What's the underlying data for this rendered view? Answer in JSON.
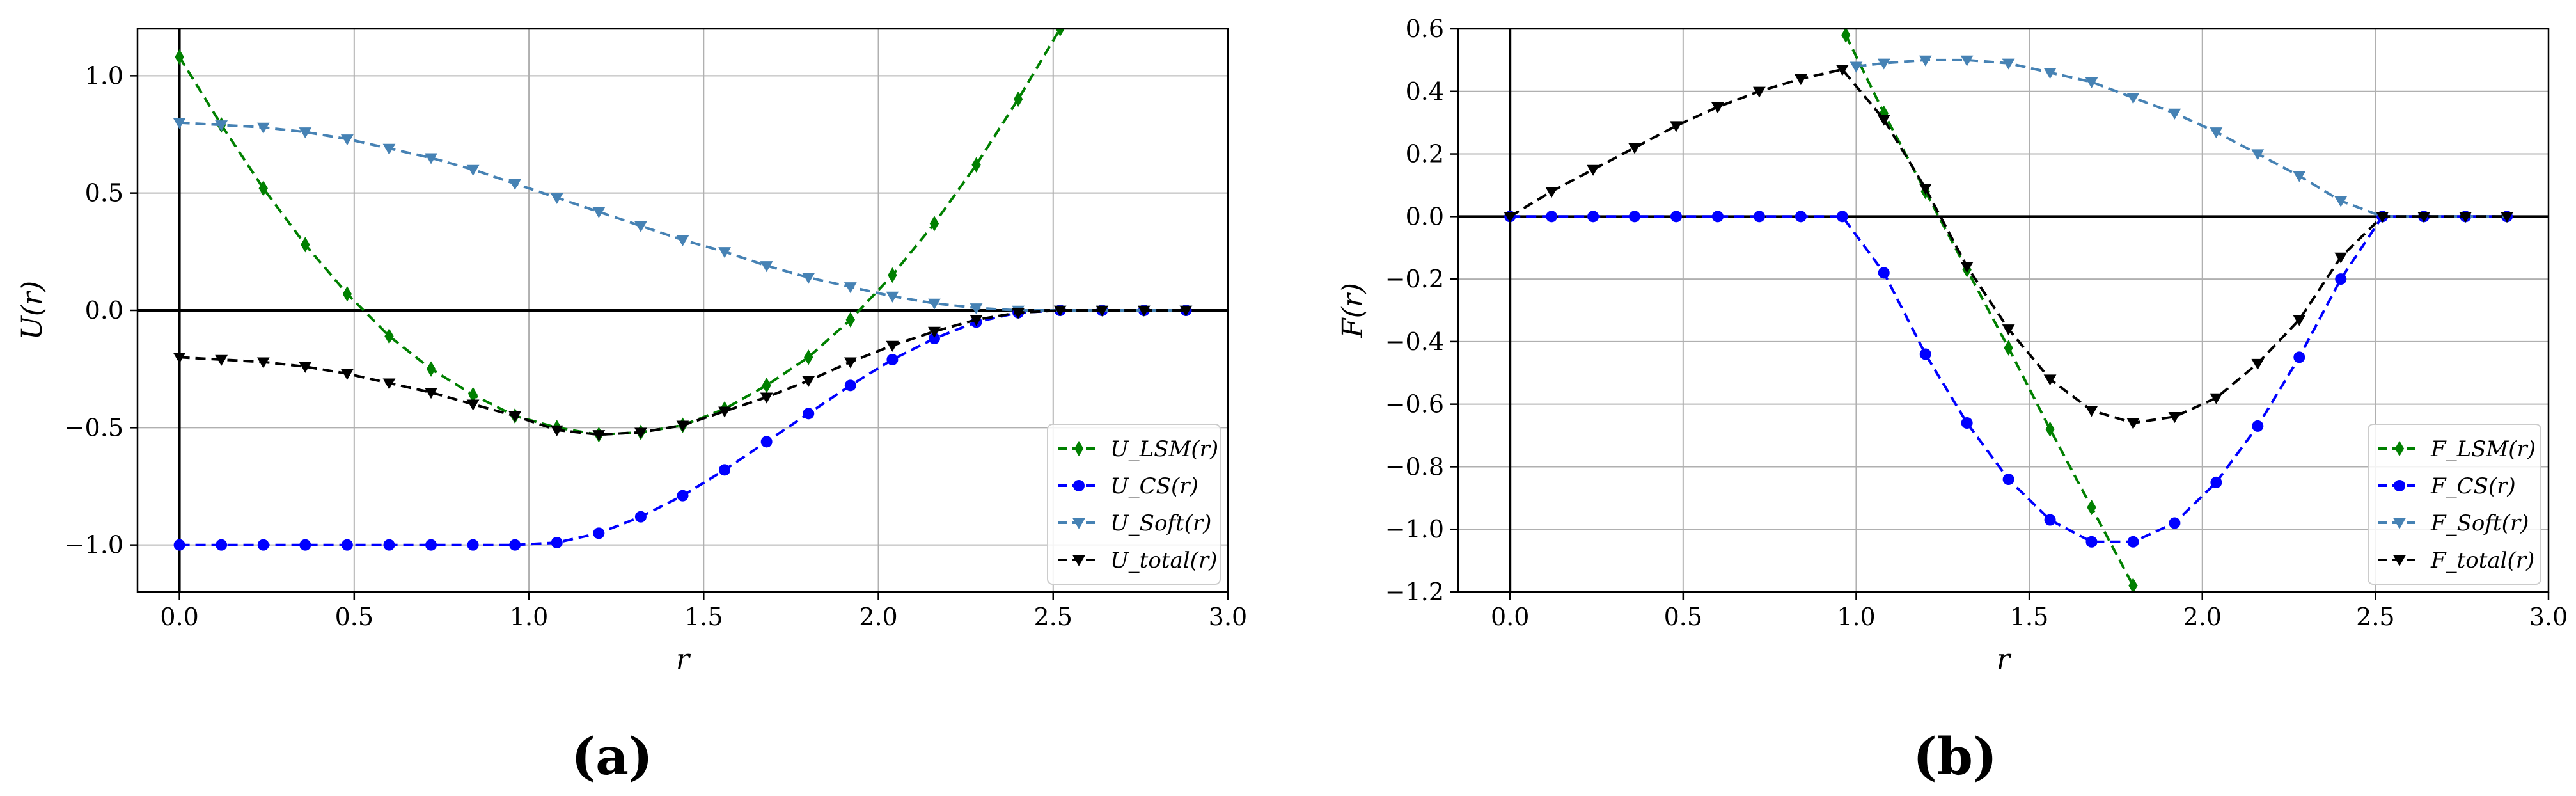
{
  "panels": [
    {
      "label": "(a)"
    },
    {
      "label": "(b)"
    }
  ],
  "chart_data": [
    {
      "type": "line",
      "panel": "(a)",
      "xlabel": "r",
      "ylabel": "U(r)",
      "xlim": [
        -0.12,
        3.0
      ],
      "ylim": [
        -1.2,
        1.2
      ],
      "xticks": [
        0.0,
        0.5,
        1.0,
        1.5,
        2.0,
        2.5,
        3.0
      ],
      "xtick_labels": [
        "0.0",
        "0.5",
        "1.0",
        "1.5",
        "2.0",
        "2.5",
        "3.0"
      ],
      "yticks": [
        -1.0,
        -0.5,
        0.0,
        0.5,
        1.0
      ],
      "ytick_labels": [
        "−1.0",
        "−0.5",
        "0.0",
        "0.5",
        "1.0"
      ],
      "grid": true,
      "legend_position": "bottom-right",
      "zero_lines": true,
      "series": [
        {
          "name": "U_LSM(r)",
          "base": "U",
          "sub": "LSM",
          "color": "#008000",
          "marker": "diamond",
          "x": [
            0.0,
            0.12,
            0.24,
            0.36,
            0.48,
            0.6,
            0.72,
            0.84,
            0.96,
            1.08,
            1.2,
            1.32,
            1.44,
            1.56,
            1.68,
            1.8,
            1.92,
            2.04,
            2.16,
            2.28,
            2.4,
            2.52
          ],
          "y": [
            1.08,
            0.79,
            0.52,
            0.28,
            0.07,
            -0.11,
            -0.25,
            -0.36,
            -0.45,
            -0.5,
            -0.53,
            -0.52,
            -0.49,
            -0.42,
            -0.32,
            -0.2,
            -0.04,
            0.15,
            0.37,
            0.62,
            0.9,
            1.2
          ]
        },
        {
          "name": "U_CS(r)",
          "base": "U",
          "sub": "CS",
          "color": "#0000ff",
          "marker": "circle",
          "x": [
            0.0,
            0.12,
            0.24,
            0.36,
            0.48,
            0.6,
            0.72,
            0.84,
            0.96,
            1.08,
            1.2,
            1.32,
            1.44,
            1.56,
            1.68,
            1.8,
            1.92,
            2.04,
            2.16,
            2.28,
            2.4,
            2.52,
            2.64,
            2.76,
            2.88
          ],
          "y": [
            -1.0,
            -1.0,
            -1.0,
            -1.0,
            -1.0,
            -1.0,
            -1.0,
            -1.0,
            -1.0,
            -0.99,
            -0.95,
            -0.88,
            -0.79,
            -0.68,
            -0.56,
            -0.44,
            -0.32,
            -0.21,
            -0.12,
            -0.05,
            -0.01,
            0.0,
            0.0,
            0.0,
            0.0
          ]
        },
        {
          "name": "U_Soft(r)",
          "base": "U",
          "sub": "Soft",
          "color": "#4682b4",
          "marker": "triangle-down",
          "x": [
            0.0,
            0.12,
            0.24,
            0.36,
            0.48,
            0.6,
            0.72,
            0.84,
            0.96,
            1.08,
            1.2,
            1.32,
            1.44,
            1.56,
            1.68,
            1.8,
            1.92,
            2.04,
            2.16,
            2.28,
            2.4,
            2.52,
            2.64,
            2.76,
            2.88
          ],
          "y": [
            0.8,
            0.79,
            0.78,
            0.76,
            0.73,
            0.69,
            0.65,
            0.6,
            0.54,
            0.48,
            0.42,
            0.36,
            0.3,
            0.25,
            0.19,
            0.14,
            0.1,
            0.06,
            0.03,
            0.01,
            0.0,
            0.0,
            0.0,
            0.0,
            0.0
          ]
        },
        {
          "name": "U_total(r)",
          "base": "U",
          "sub": "total",
          "color": "#000000",
          "marker": "triangle-down",
          "x": [
            0.0,
            0.12,
            0.24,
            0.36,
            0.48,
            0.6,
            0.72,
            0.84,
            0.96,
            1.08,
            1.2,
            1.32,
            1.44,
            1.56,
            1.68,
            1.8,
            1.92,
            2.04,
            2.16,
            2.28,
            2.4,
            2.52,
            2.64,
            2.76,
            2.88
          ],
          "y": [
            -0.2,
            -0.21,
            -0.22,
            -0.24,
            -0.27,
            -0.31,
            -0.35,
            -0.4,
            -0.45,
            -0.51,
            -0.53,
            -0.52,
            -0.49,
            -0.43,
            -0.37,
            -0.3,
            -0.22,
            -0.15,
            -0.09,
            -0.04,
            -0.01,
            0.0,
            0.0,
            0.0,
            0.0
          ]
        }
      ]
    },
    {
      "type": "line",
      "panel": "(b)",
      "xlabel": "r",
      "ylabel": "F(r)",
      "xlim": [
        -0.15,
        3.0
      ],
      "ylim": [
        -1.2,
        0.6
      ],
      "xticks": [
        0.0,
        0.5,
        1.0,
        1.5,
        2.0,
        2.5,
        3.0
      ],
      "xtick_labels": [
        "0.0",
        "0.5",
        "1.0",
        "1.5",
        "2.0",
        "2.5",
        "3.0"
      ],
      "yticks": [
        -1.2,
        -1.0,
        -0.8,
        -0.6,
        -0.4,
        -0.2,
        0.0,
        0.2,
        0.4,
        0.6
      ],
      "ytick_labels": [
        "−1.2",
        "−1.0",
        "−0.8",
        "−0.6",
        "−0.4",
        "−0.2",
        "0.0",
        "0.2",
        "0.4",
        "0.6"
      ],
      "grid": true,
      "legend_position": "bottom-right",
      "zero_lines": true,
      "series": [
        {
          "name": "F_LSM(r)",
          "base": "F",
          "sub": "LSM",
          "color": "#008000",
          "marker": "diamond",
          "x": [
            0.97,
            1.08,
            1.2,
            1.32,
            1.44,
            1.56,
            1.68,
            1.8
          ],
          "y": [
            0.58,
            0.33,
            0.08,
            -0.17,
            -0.42,
            -0.68,
            -0.93,
            -1.18
          ]
        },
        {
          "name": "F_CS(r)",
          "base": "F",
          "sub": "CS",
          "color": "#0000ff",
          "marker": "circle",
          "x": [
            0.0,
            0.12,
            0.24,
            0.36,
            0.48,
            0.6,
            0.72,
            0.84,
            0.96,
            1.08,
            1.2,
            1.32,
            1.44,
            1.56,
            1.68,
            1.8,
            1.92,
            2.04,
            2.16,
            2.28,
            2.4,
            2.52,
            2.64,
            2.76,
            2.88
          ],
          "y": [
            0.0,
            0.0,
            0.0,
            0.0,
            0.0,
            0.0,
            0.0,
            0.0,
            0.0,
            -0.18,
            -0.44,
            -0.66,
            -0.84,
            -0.97,
            -1.04,
            -1.04,
            -0.98,
            -0.85,
            -0.67,
            -0.45,
            -0.2,
            0.0,
            0.0,
            0.0,
            0.0
          ]
        },
        {
          "name": "F_Soft(r)",
          "base": "F",
          "sub": "Soft",
          "color": "#4682b4",
          "marker": "triangle-down",
          "x": [
            1.0,
            1.08,
            1.2,
            1.32,
            1.44,
            1.56,
            1.68,
            1.8,
            1.92,
            2.04,
            2.16,
            2.28,
            2.4,
            2.52,
            2.64,
            2.76,
            2.88
          ],
          "y": [
            0.48,
            0.49,
            0.5,
            0.5,
            0.49,
            0.46,
            0.43,
            0.38,
            0.33,
            0.27,
            0.2,
            0.13,
            0.05,
            0.0,
            0.0,
            0.0,
            0.0
          ]
        },
        {
          "name": "F_total(r)",
          "base": "F",
          "sub": "total",
          "color": "#000000",
          "marker": "triangle-down",
          "x": [
            0.0,
            0.12,
            0.24,
            0.36,
            0.48,
            0.6,
            0.72,
            0.84,
            0.96,
            1.08,
            1.2,
            1.32,
            1.44,
            1.56,
            1.68,
            1.8,
            1.92,
            2.04,
            2.16,
            2.28,
            2.4,
            2.52,
            2.64,
            2.76,
            2.88
          ],
          "y": [
            0.0,
            0.08,
            0.15,
            0.22,
            0.29,
            0.35,
            0.4,
            0.44,
            0.47,
            0.31,
            0.09,
            -0.16,
            -0.36,
            -0.52,
            -0.62,
            -0.66,
            -0.64,
            -0.58,
            -0.47,
            -0.33,
            -0.13,
            0.0,
            0.0,
            0.0,
            0.0
          ]
        }
      ]
    }
  ]
}
